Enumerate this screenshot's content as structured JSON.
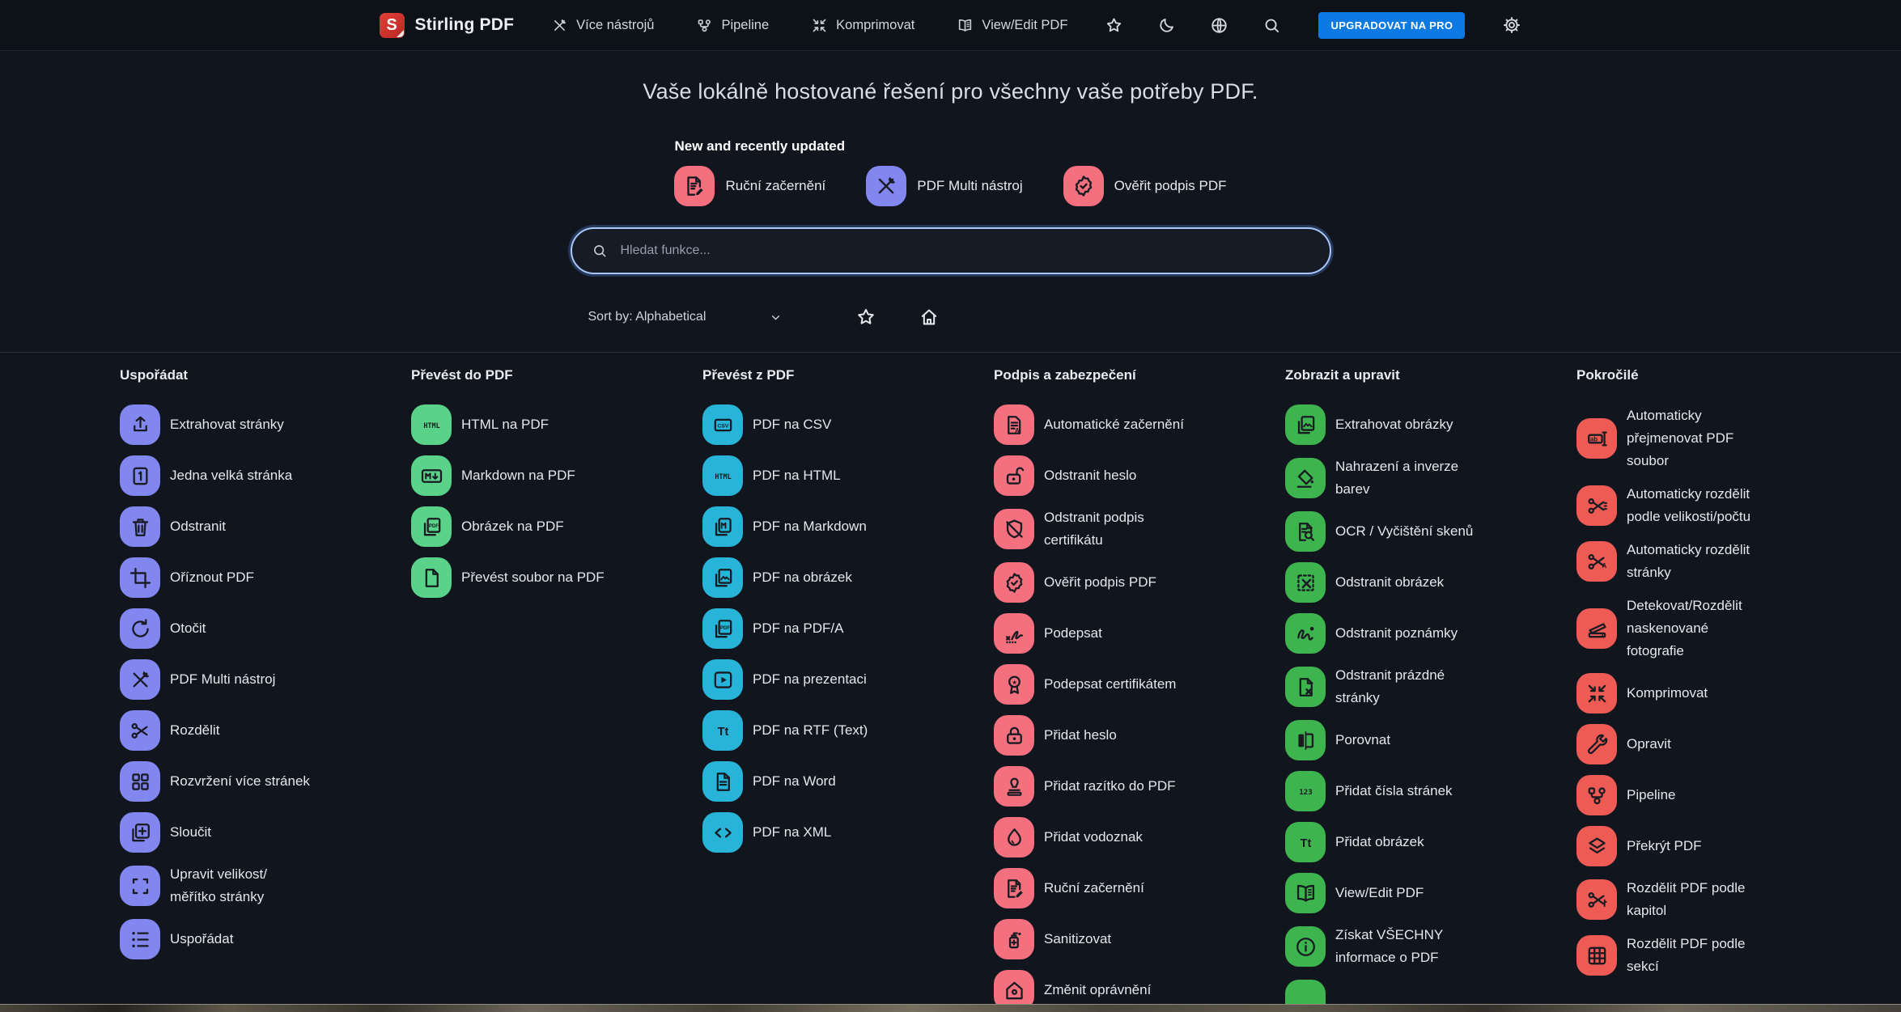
{
  "header": {
    "brand": {
      "name": "Stirling PDF",
      "logo_letter": "S",
      "logo_color": "#c8342c"
    },
    "nav": [
      {
        "label": "Více nástrojů",
        "icon": "tools"
      },
      {
        "label": "Pipeline",
        "icon": "pipeline"
      },
      {
        "label": "Komprimovat",
        "icon": "compress"
      },
      {
        "label": "View/Edit PDF",
        "icon": "book"
      }
    ],
    "icon_buttons": [
      {
        "icon": "star"
      },
      {
        "icon": "moon"
      },
      {
        "icon": "globe"
      },
      {
        "icon": "search"
      }
    ],
    "upgrade_button": "UPGRADOVAT NA PRO",
    "settings_icon": "gear"
  },
  "hero": {
    "title": "Vaše lokálně hostované řešení pro všechny vaše potřeby PDF.",
    "featured_heading": "New and recently updated",
    "featured": [
      {
        "label": "Ruční začernění",
        "icon": "doc-pen",
        "color": "#f4707f"
      },
      {
        "label": "PDF Multi nástroj",
        "icon": "tools",
        "color": "#8287f0"
      },
      {
        "label": "Ověřit podpis PDF",
        "icon": "badge-check",
        "color": "#f4707f"
      }
    ],
    "search_placeholder": "Hledat funkce...",
    "sort_label": "Sort by: Alphabetical"
  },
  "columns": [
    {
      "title": "Uspořádat",
      "color": "#8287f0",
      "items": [
        {
          "label": "Extrahovat stránky",
          "icon": "upload"
        },
        {
          "label": "Jedna velká stránka",
          "icon": "page-one"
        },
        {
          "label": "Odstranit",
          "icon": "trash"
        },
        {
          "label": "Oříznout PDF",
          "icon": "crop"
        },
        {
          "label": "Otočit",
          "icon": "rotate"
        },
        {
          "label": "PDF Multi nástroj",
          "icon": "tools"
        },
        {
          "label": "Rozdělit",
          "icon": "scissors"
        },
        {
          "label": "Rozvržení více stránek",
          "icon": "grid4"
        },
        {
          "label": "Sloučit",
          "icon": "merge"
        },
        {
          "label": "Upravit velikost/\nměřítko stránky",
          "icon": "resize"
        },
        {
          "label": "Uspořádat",
          "icon": "list"
        }
      ]
    },
    {
      "title": "Převést do PDF",
      "color": "#5bd289",
      "items": [
        {
          "label": "HTML na PDF",
          "icon": "html"
        },
        {
          "label": "Markdown na PDF",
          "icon": "markdown"
        },
        {
          "label": "Obrázek na PDF",
          "icon": "pdf-pages"
        },
        {
          "label": "Převést soubor na PDF",
          "icon": "file"
        }
      ]
    },
    {
      "title": "Převést z PDF",
      "color": "#27b4d8",
      "items": [
        {
          "label": "PDF na CSV",
          "icon": "csv"
        },
        {
          "label": "PDF na HTML",
          "icon": "html"
        },
        {
          "label": "PDF na Markdown",
          "icon": "md-pages"
        },
        {
          "label": "PDF na obrázek",
          "icon": "image-pages"
        },
        {
          "label": "PDF na PDF/A",
          "icon": "pdf-pages"
        },
        {
          "label": "PDF na prezentaci",
          "icon": "play"
        },
        {
          "label": "PDF na RTF (Text)",
          "icon": "Tt"
        },
        {
          "label": "PDF na Word",
          "icon": "doc"
        },
        {
          "label": "PDF na XML",
          "icon": "code"
        }
      ]
    },
    {
      "title": "Podpis a zabezpečení",
      "color": "#f4707f",
      "items": [
        {
          "label": "Automatické začernění",
          "icon": "doc-a"
        },
        {
          "label": "Odstranit heslo",
          "icon": "lock-open"
        },
        {
          "label": "Odstranit podpis\ncertifikátu",
          "icon": "shield-off"
        },
        {
          "label": "Ověřit podpis PDF",
          "icon": "badge-check"
        },
        {
          "label": "Podepsat",
          "icon": "signature"
        },
        {
          "label": "Podepsat certifikátem",
          "icon": "award"
        },
        {
          "label": "Přidat heslo",
          "icon": "lock"
        },
        {
          "label": "Přidat razítko do PDF",
          "icon": "stamp"
        },
        {
          "label": "Přidat vodoznak",
          "icon": "droplet"
        },
        {
          "label": "Ruční začernění",
          "icon": "doc-pen"
        },
        {
          "label": "Sanitizovat",
          "icon": "sanitize"
        },
        {
          "label": "Změnit oprávnění",
          "icon": "home-dot"
        }
      ]
    },
    {
      "title": "Zobrazit a upravit",
      "color": "#3eb44f",
      "items": [
        {
          "label": "Extrahovat obrázky",
          "icon": "image-pages"
        },
        {
          "label": "Nahrazení a inverze\nbarev",
          "icon": "paint"
        },
        {
          "label": "OCR / Vyčištění skenů",
          "icon": "doc-search"
        },
        {
          "label": "Odstranit obrázek",
          "icon": "dashed-x"
        },
        {
          "label": "Odstranit poznámky",
          "icon": "scribble"
        },
        {
          "label": "Odstranit prázdné\nstránky",
          "icon": "page-x"
        },
        {
          "label": "Porovnat",
          "icon": "compare"
        },
        {
          "label": "Přidat čísla stránek",
          "icon": "one23"
        },
        {
          "label": "Přidat obrázek",
          "icon": "Tt"
        },
        {
          "label": "View/Edit PDF",
          "icon": "book"
        },
        {
          "label": "Získat VŠECHNY\ninformace o PDF",
          "icon": "info"
        },
        {
          "label": "",
          "icon": "none"
        }
      ]
    },
    {
      "title": "Pokročilé",
      "color": "#ee5b55",
      "items": [
        {
          "label": "Automaticky\npřejmenovat PDF\nsoubor",
          "icon": "rename"
        },
        {
          "label": "Automaticky rozdělit\npodle velikosti/počtu",
          "icon": "scissors-lines"
        },
        {
          "label": "Automaticky rozdělit\nstránky",
          "icon": "scissors-a"
        },
        {
          "label": "Detekovat/Rozdělit\nnaskenované\nfotografie",
          "icon": "scanner"
        },
        {
          "label": "Komprimovat",
          "icon": "compress"
        },
        {
          "label": "Opravit",
          "icon": "wrench"
        },
        {
          "label": "Pipeline",
          "icon": "pipeline"
        },
        {
          "label": "Překrýt PDF",
          "icon": "layers"
        },
        {
          "label": "Rozdělit PDF podle\nkapitol",
          "icon": "scissors-flag"
        },
        {
          "label": "Rozdělit PDF podle\nsekcí",
          "icon": "grid9"
        }
      ]
    }
  ]
}
